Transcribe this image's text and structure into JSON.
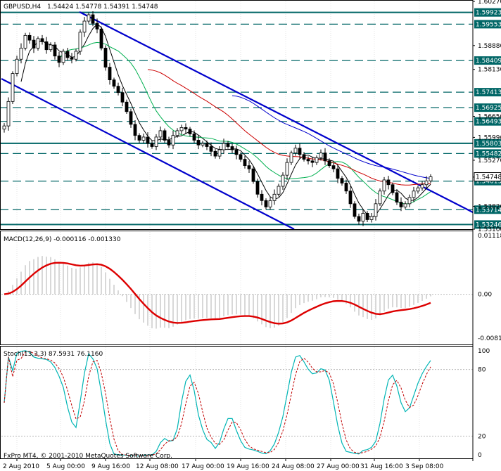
{
  "header": {
    "symbol": "GBPUSD,H4",
    "ohlc": "1.54424 1.54778 1.54391 1.54748"
  },
  "macd_label": "MACD(12,26,9) -0.000116 -0.001330",
  "stoch_label": "Stoch(13,3,3) 87.5931 76.1160",
  "copyright": "FxPro MT4, © 2001-2010 MetaQuotes Software Corp.",
  "chart_data": [
    {
      "type": "candlestick",
      "price_scale": [
        "1.60270",
        "1.58880",
        "1.58130",
        "1.56650",
        "1.55990",
        "1.55270",
        "1.54740",
        "1.53820",
        "1.53100"
      ],
      "ylim": [
        1.531,
        1.6027
      ],
      "current_price": 1.54748,
      "level_labels": [
        "1.59923",
        "1.59553",
        "1.58409",
        "1.57413",
        "1.56925",
        "1.56493",
        "1.55803",
        "1.55482",
        "1.54613",
        "1.53714",
        "1.53246"
      ],
      "levels": [
        {
          "price": 1.59923,
          "style": "solid"
        },
        {
          "price": 1.59553,
          "style": "dash"
        },
        {
          "price": 1.58409,
          "style": "dash"
        },
        {
          "price": 1.57413,
          "style": "dash"
        },
        {
          "price": 1.56925,
          "style": "dash"
        },
        {
          "price": 1.56493,
          "style": "dash"
        },
        {
          "price": 1.55803,
          "style": "solid"
        },
        {
          "price": 1.55482,
          "style": "dash"
        },
        {
          "price": 1.54613,
          "style": "dash"
        },
        {
          "price": 1.53714,
          "style": "dash"
        },
        {
          "price": 1.53246,
          "style": "solid"
        }
      ],
      "close": [
        1.5635,
        1.5712,
        1.58,
        1.5845,
        1.588,
        1.592,
        1.5905,
        1.588,
        1.591,
        1.59,
        1.5875,
        1.589,
        1.5855,
        1.5835,
        1.587,
        1.585,
        1.5845,
        1.587,
        1.593,
        1.5965,
        1.5985,
        1.5958,
        1.594,
        1.588,
        1.582,
        1.578,
        1.576,
        1.574,
        1.571,
        1.568,
        1.564,
        1.5605,
        1.559,
        1.56,
        1.558,
        1.557,
        1.56,
        1.562,
        1.559,
        1.5575,
        1.5605,
        1.562,
        1.563,
        1.5625,
        1.561,
        1.559,
        1.5575,
        1.558,
        1.557,
        1.5555,
        1.554,
        1.556,
        1.558,
        1.557,
        1.556,
        1.5545,
        1.553,
        1.551,
        1.55,
        1.546,
        1.542,
        1.54,
        1.538,
        1.54,
        1.542,
        1.5445,
        1.548,
        1.552,
        1.555,
        1.5565,
        1.5545,
        1.553,
        1.5525,
        1.552,
        1.5535,
        1.555,
        1.5525,
        1.551,
        1.55,
        1.547,
        1.5455,
        1.543,
        1.539,
        1.535,
        1.5335,
        1.536,
        1.534,
        1.535,
        1.539,
        1.543,
        1.5465,
        1.545,
        1.5425,
        1.5395,
        1.538,
        1.539,
        1.541,
        1.543,
        1.544,
        1.545,
        1.5462,
        1.5475
      ]
    },
    {
      "type": "line",
      "name": "MACD(12,26,9)",
      "values": [
        -0.000116,
        -0.00133
      ],
      "scale_labels": [
        "0.011182",
        "0.00",
        "-0.008104"
      ],
      "ylim": [
        -0.0095,
        0.0118
      ]
    },
    {
      "type": "line",
      "name": "Stoch(13,3,3)",
      "values": [
        87.5931,
        76.116
      ],
      "scale_labels": [
        "100",
        "80",
        "20",
        "0"
      ],
      "ylim": [
        0,
        100
      ]
    },
    {
      "type": "axis",
      "x_labels": [
        "2 Aug 2010",
        "5 Aug 00:00",
        "9 Aug 16:00",
        "12 Aug 08:00",
        "17 Aug 00:00",
        "19 Aug 16:00",
        "24 Aug 08:00",
        "27 Aug 00:00",
        "31 Aug 16:00",
        "3 Sep 08:00"
      ]
    }
  ],
  "colors": {
    "channel": "#0000cc",
    "levels": "#006666",
    "macd_signal": "#dd0000",
    "ma_black": "#000000",
    "ma_green": "#00b050",
    "ma_red": "#cc0000",
    "ma_blue": "#0000cc",
    "stoch_main": "#00b5b5",
    "stoch_signal": "#c00000"
  }
}
